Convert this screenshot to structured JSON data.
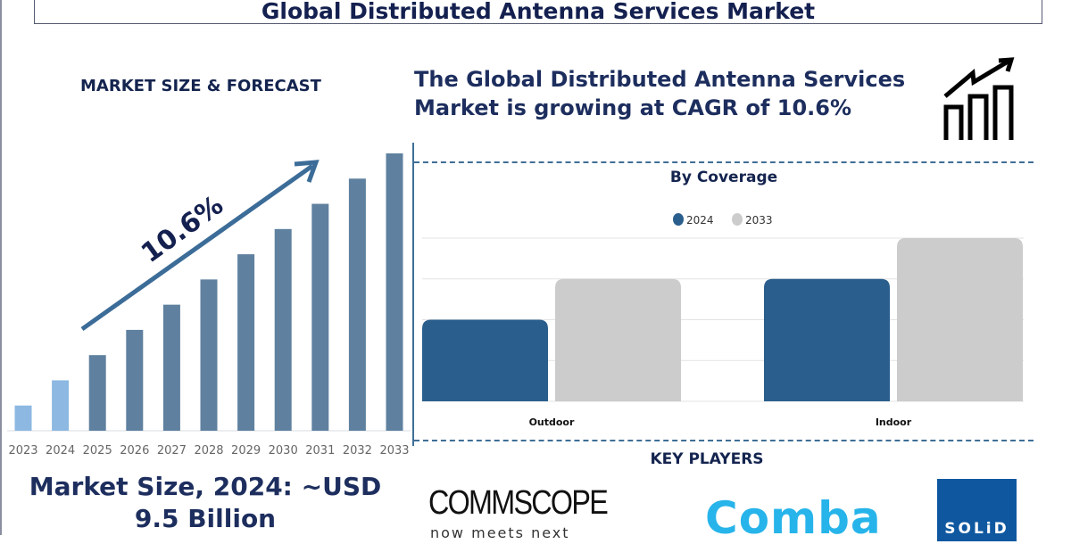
{
  "header": {
    "title": "Global Distributed Antenna Services Market"
  },
  "left_panel": {
    "section_title": "MARKET SIZE & FORECAST",
    "cagr_label": "10.6%",
    "market_size_line1": "Market Size, 2024: ~USD",
    "market_size_line2": "9.5 Billion"
  },
  "right_panel": {
    "headline_line1": "The Global Distributed Antenna Services",
    "headline_line2": "Market is growing at CAGR of 10.6%",
    "icon": "growth-chart-icon",
    "key_players_title": "KEY PLAYERS",
    "key_players": [
      {
        "name": "COMMSCOPE",
        "tagline": "now meets next"
      },
      {
        "name": "Comba"
      },
      {
        "name": "SOLiD"
      }
    ]
  },
  "colors": {
    "navy": "#14244f",
    "bar_forecast": "#5f819f",
    "bar_history": "#8cb8e2",
    "series_2024": "#2a5e8d",
    "series_2033": "#cccccc",
    "accent_line": "#3f6f96"
  },
  "chart_data": [
    {
      "type": "bar",
      "title": "",
      "categories": [
        "2023",
        "2024",
        "2025",
        "2026",
        "2027",
        "2028",
        "2029",
        "2030",
        "2031",
        "2032",
        "2033"
      ],
      "values": [
        1,
        2,
        3,
        4,
        5,
        6,
        7,
        8,
        9,
        10,
        11
      ],
      "ylim": [
        0,
        11
      ],
      "grid": false,
      "annotation": "10.6%"
    },
    {
      "type": "bar",
      "title": "By Coverage",
      "categories": [
        "Outdoor",
        "Indoor"
      ],
      "series": [
        {
          "name": "2024",
          "values": [
            2,
            3
          ]
        },
        {
          "name": "2033",
          "values": [
            3,
            4
          ]
        }
      ],
      "ylim": [
        0,
        4
      ],
      "grid": true,
      "legend": "top-center"
    }
  ]
}
